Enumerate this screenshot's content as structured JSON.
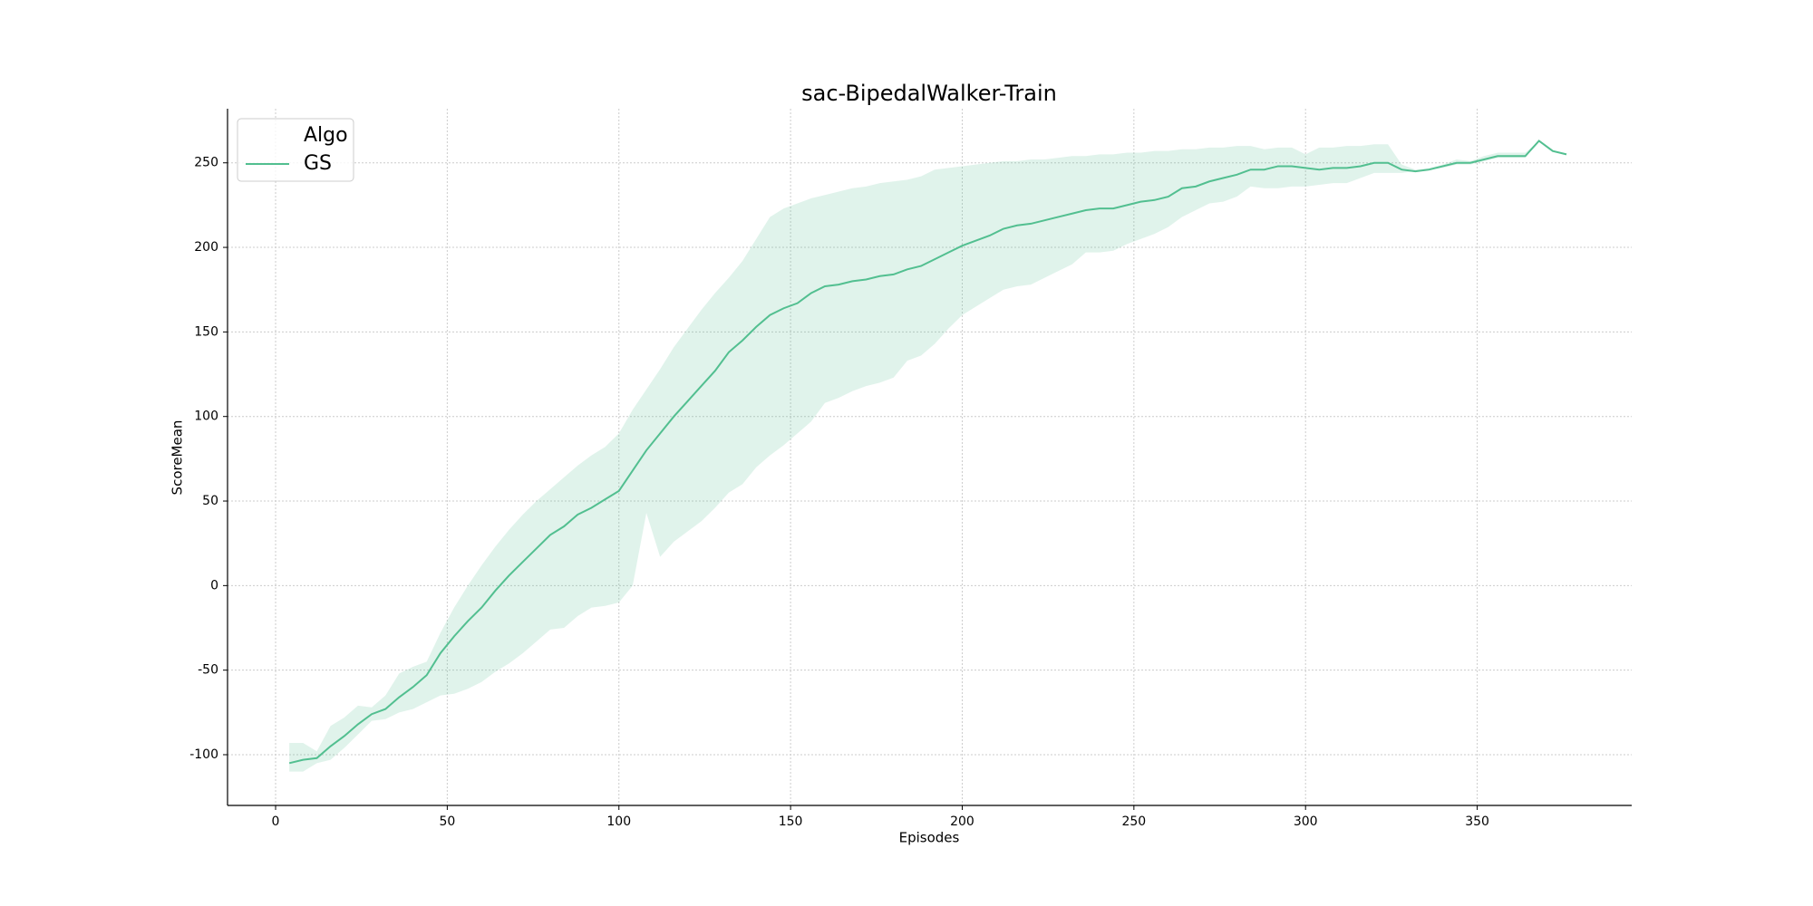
{
  "chart_data": {
    "type": "line",
    "title": "sac-BipedalWalker-Train",
    "xlabel": "Episodes",
    "ylabel": "ScoreMean",
    "legend_title": "Algo",
    "legend": "upper left",
    "grid": true,
    "xlim": [
      -14,
      395
    ],
    "xticks": [
      0,
      50,
      100,
      150,
      200,
      250,
      300,
      350
    ],
    "ylim": [
      -130,
      282
    ],
    "yticks": [
      -100,
      -50,
      0,
      50,
      100,
      150,
      200,
      250
    ],
    "x": [
      4,
      8,
      12,
      16,
      20,
      24,
      28,
      32,
      36,
      40,
      44,
      48,
      52,
      56,
      60,
      64,
      68,
      72,
      76,
      80,
      84,
      88,
      92,
      96,
      100,
      104,
      108,
      112,
      116,
      120,
      124,
      128,
      132,
      136,
      140,
      144,
      148,
      152,
      156,
      160,
      164,
      168,
      172,
      176,
      180,
      184,
      188,
      192,
      196,
      200,
      204,
      208,
      212,
      216,
      220,
      224,
      228,
      232,
      236,
      240,
      244,
      248,
      252,
      256,
      260,
      264,
      268,
      272,
      276,
      280,
      284,
      288,
      292,
      296,
      300,
      304,
      308,
      312,
      316,
      320,
      324,
      328,
      332,
      336,
      340,
      344,
      348,
      352,
      356,
      360,
      364,
      368,
      372,
      376
    ],
    "series": [
      {
        "name": "GS",
        "color": "#52bf90",
        "values": [
          -105,
          -103,
          -102,
          -95,
          -89,
          -82,
          -76,
          -73,
          -66,
          -60,
          -53,
          -40,
          -30,
          -21,
          -13,
          -3,
          6,
          14,
          22,
          30,
          35,
          42,
          46,
          51,
          56,
          68,
          80,
          90,
          100,
          109,
          118,
          127,
          138,
          145,
          153,
          160,
          164,
          167,
          173,
          177,
          178,
          180,
          181,
          183,
          184,
          187,
          189,
          193,
          197,
          201,
          204,
          207,
          211,
          213,
          214,
          216,
          218,
          220,
          222,
          223,
          223,
          225,
          227,
          228,
          230,
          235,
          236,
          239,
          241,
          243,
          246,
          246,
          248,
          248,
          247,
          246,
          247,
          247,
          248,
          250,
          250,
          246,
          245,
          246,
          248,
          250,
          250,
          252,
          254,
          254,
          254,
          263,
          257,
          255
        ],
        "upper": [
          -93,
          -93,
          -98,
          -83,
          -78,
          -71,
          -72,
          -65,
          -52,
          -48,
          -45,
          -28,
          -13,
          0,
          12,
          23,
          33,
          42,
          50,
          57,
          64,
          71,
          77,
          82,
          90,
          104,
          116,
          128,
          141,
          152,
          163,
          173,
          182,
          192,
          205,
          218,
          223,
          226,
          229,
          231,
          233,
          235,
          236,
          238,
          239,
          240,
          242,
          246,
          247,
          248,
          249,
          250,
          251,
          251,
          252,
          252,
          253,
          254,
          254,
          255,
          255,
          256,
          256,
          257,
          257,
          258,
          258,
          259,
          259,
          260,
          260,
          258,
          259,
          259,
          255,
          259,
          259,
          260,
          260,
          261,
          261,
          249,
          246,
          247,
          249,
          252,
          251,
          254,
          256,
          256,
          256,
          263,
          257,
          255
        ],
        "lower": [
          -110,
          -110,
          -105,
          -103,
          -96,
          -88,
          -80,
          -79,
          -75,
          -73,
          -69,
          -65,
          -64,
          -61,
          -57,
          -51,
          -46,
          -40,
          -33,
          -26,
          -25,
          -18,
          -13,
          -12,
          -10,
          0,
          43,
          17,
          26,
          32,
          38,
          46,
          55,
          60,
          70,
          77,
          83,
          90,
          97,
          108,
          111,
          115,
          118,
          120,
          123,
          133,
          136,
          143,
          152,
          160,
          165,
          170,
          175,
          177,
          178,
          182,
          186,
          190,
          197,
          197,
          198,
          202,
          205,
          208,
          212,
          218,
          222,
          226,
          227,
          230,
          236,
          235,
          235,
          236,
          236,
          237,
          238,
          238,
          241,
          244,
          244,
          244,
          245,
          246,
          247,
          249,
          249,
          251,
          253,
          253,
          253,
          263,
          257,
          255
        ]
      }
    ]
  }
}
